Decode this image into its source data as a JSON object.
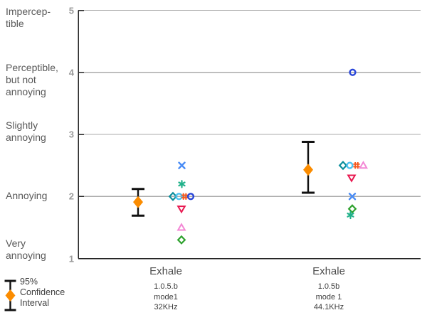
{
  "chart_data": {
    "type": "scatter",
    "title": "",
    "y_axis": {
      "min": 1,
      "max": 5,
      "gridlines": [
        2,
        3,
        4,
        5
      ],
      "ticks": [
        {
          "value": 5,
          "label": "5",
          "category_lines": [
            "Impercep-",
            "tible"
          ]
        },
        {
          "value": 4,
          "label": "4",
          "category_lines": [
            "Perceptible,",
            "but not",
            "annoying"
          ]
        },
        {
          "value": 3,
          "label": "3",
          "category_lines": [
            "Slightly",
            "annoying"
          ]
        },
        {
          "value": 2,
          "label": "2",
          "category_lines": [
            "Annoying"
          ]
        },
        {
          "value": 1,
          "label": "1",
          "category_lines": [
            "Very",
            "annoying"
          ]
        }
      ]
    },
    "series_styles": [
      {
        "id": "blue-x",
        "marker": "x",
        "color": "#4A8CF5"
      },
      {
        "id": "teal-asterisk",
        "marker": "asterisk",
        "color": "#20B18A"
      },
      {
        "id": "teal-diamond",
        "marker": "diamond-open",
        "color": "#0B8E9C"
      },
      {
        "id": "sky-circle",
        "marker": "circle-open",
        "color": "#4EC3F0"
      },
      {
        "id": "orange-hash",
        "marker": "hash",
        "color": "#F4581E"
      },
      {
        "id": "royal-circle",
        "marker": "circle-open",
        "color": "#2946D9"
      },
      {
        "id": "red-triangle-down",
        "marker": "triangle-down-open",
        "color": "#E8174F"
      },
      {
        "id": "pink-triangle-up",
        "marker": "triangle-up-open",
        "color": "#F387D5"
      },
      {
        "id": "green-diamond",
        "marker": "diamond-open",
        "color": "#2DA12D"
      }
    ],
    "groups": [
      {
        "label": "Exhale",
        "sub_labels": [
          "1.0.5.b",
          "mode1",
          "32KHz"
        ],
        "ci": {
          "mean": 1.91,
          "low": 1.69,
          "high": 2.12
        },
        "points": [
          {
            "series": "blue-x",
            "value": 2.5,
            "dx": 0
          },
          {
            "series": "teal-asterisk",
            "value": 2.2,
            "dx": 0
          },
          {
            "series": "teal-diamond",
            "value": 2.0,
            "dx": -12.5
          },
          {
            "series": "sky-circle",
            "value": 2.0,
            "dx": -4
          },
          {
            "series": "orange-hash",
            "value": 2.0,
            "dx": 4
          },
          {
            "series": "royal-circle",
            "value": 2.0,
            "dx": 12.5
          },
          {
            "series": "red-triangle-down",
            "value": 1.8,
            "dx": -0.5
          },
          {
            "series": "pink-triangle-up",
            "value": 1.5,
            "dx": -0.5
          },
          {
            "series": "green-diamond",
            "value": 1.3,
            "dx": -0.5
          }
        ]
      },
      {
        "label": "Exhale",
        "sub_labels": [
          "1.0.5b",
          "mode 1",
          "44.1KHz"
        ],
        "ci": {
          "mean": 2.43,
          "low": 2.06,
          "high": 2.88
        },
        "points": [
          {
            "series": "royal-circle",
            "value": 4.0,
            "dx": 0
          },
          {
            "series": "teal-diamond",
            "value": 2.5,
            "dx": -13.5
          },
          {
            "series": "sky-circle",
            "value": 2.5,
            "dx": -4
          },
          {
            "series": "orange-hash",
            "value": 2.5,
            "dx": 5.5
          },
          {
            "series": "pink-triangle-up",
            "value": 2.5,
            "dx": 15
          },
          {
            "series": "red-triangle-down",
            "value": 2.3,
            "dx": -1.5
          },
          {
            "series": "blue-x",
            "value": 2.0,
            "dx": -0.5
          },
          {
            "series": "green-diamond",
            "value": 1.8,
            "dx": -0.5
          },
          {
            "series": "teal-asterisk",
            "value": 1.7,
            "dx": -3
          }
        ]
      }
    ],
    "legend": {
      "lines": [
        "95%",
        "Confidence",
        "Interval"
      ]
    },
    "colors": {
      "ci_marker": "#FB8C00",
      "error_bar": "#111111",
      "grid": "#ABABAB",
      "axis": "#262626",
      "tick_label": "#9B9B9B",
      "category_label": "#595959",
      "x_label": "#4D4D4D",
      "x_sub_label": "#3D3D3D",
      "legend_text": "#404040"
    }
  }
}
